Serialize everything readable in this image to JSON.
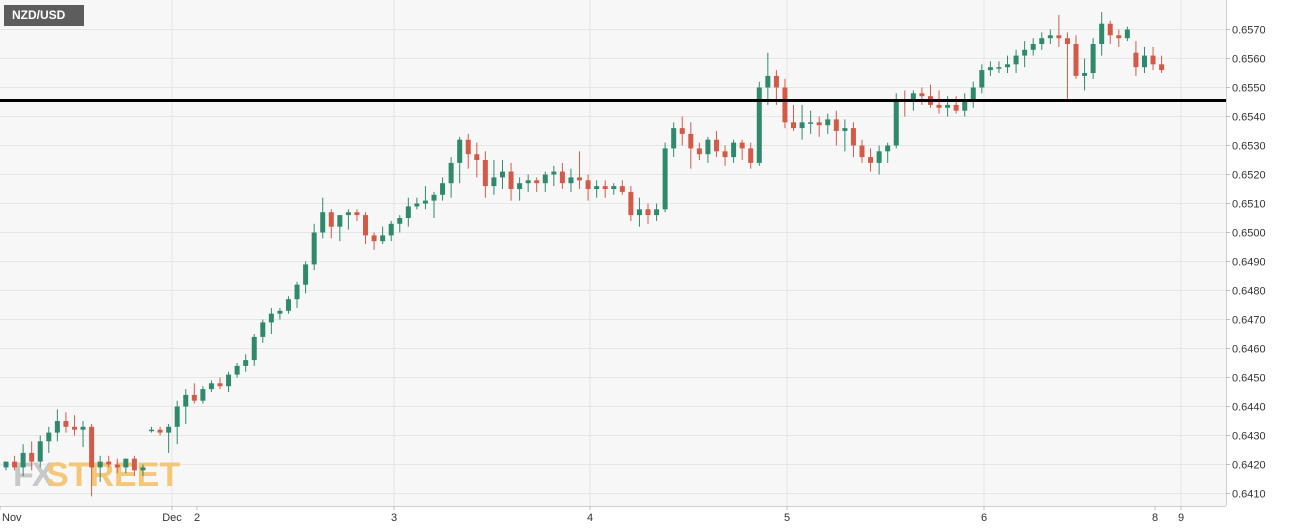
{
  "symbol_badge": "NZD/USD",
  "watermark": {
    "fx": "FX",
    "street": "STREET"
  },
  "colors": {
    "up": "#2f8a6d",
    "down": "#d45a48",
    "grid": "#e6e6e6",
    "level_line": "#000000",
    "plot_bg": "#f7f7f8"
  },
  "chart_data": {
    "type": "candlestick",
    "title": "NZD/USD",
    "ylim": [
      0.6407,
      0.6578
    ],
    "ytick_labels": [
      "0.6570",
      "0.6560",
      "0.6550",
      "0.6540",
      "0.6530",
      "0.6520",
      "0.6510",
      "0.6500",
      "0.6490",
      "0.6480",
      "0.6470",
      "0.6460",
      "0.6450",
      "0.6440",
      "0.6430",
      "0.6420",
      "0.6410"
    ],
    "xtick_labels": [
      "Nov",
      "Dec",
      "2",
      "3",
      "4",
      "5",
      "6",
      "8",
      "9"
    ],
    "grid": true,
    "horizontal_level": 0.65455,
    "candles": [
      [
        0.6419,
        0.6421,
        0.6418,
        0.6421
      ],
      [
        0.6421,
        0.6423,
        0.6418,
        0.6419
      ],
      [
        0.6419,
        0.6427,
        0.6416,
        0.6424
      ],
      [
        0.6424,
        0.6428,
        0.6418,
        0.6421
      ],
      [
        0.6421,
        0.643,
        0.6419,
        0.6428
      ],
      [
        0.6428,
        0.6433,
        0.6424,
        0.6431
      ],
      [
        0.6431,
        0.6439,
        0.6428,
        0.6435
      ],
      [
        0.6435,
        0.6438,
        0.6431,
        0.6433
      ],
      [
        0.6433,
        0.6437,
        0.643,
        0.6432
      ],
      [
        0.6432,
        0.6435,
        0.6426,
        0.6433
      ],
      [
        0.6433,
        0.6434,
        0.6409,
        0.6419
      ],
      [
        0.6419,
        0.6423,
        0.6414,
        0.6421
      ],
      [
        0.6421,
        0.6423,
        0.6419,
        0.642
      ],
      [
        0.642,
        0.6422,
        0.6417,
        0.6419
      ],
      [
        0.6419,
        0.6422,
        0.6417,
        0.6422
      ],
      [
        0.6422,
        0.6423,
        0.6416,
        0.6418
      ],
      [
        0.6418,
        0.642,
        0.6416,
        0.6419
      ],
      [
        0.6432,
        0.6433,
        0.6431,
        0.6432
      ],
      [
        0.6432,
        0.6433,
        0.643,
        0.6431
      ],
      [
        0.6431,
        0.6434,
        0.6424,
        0.6433
      ],
      [
        0.6433,
        0.6442,
        0.6427,
        0.644
      ],
      [
        0.644,
        0.6446,
        0.6434,
        0.6444
      ],
      [
        0.6444,
        0.6448,
        0.6441,
        0.6442
      ],
      [
        0.6442,
        0.6447,
        0.6441,
        0.6446
      ],
      [
        0.6446,
        0.6449,
        0.6445,
        0.6448
      ],
      [
        0.6448,
        0.645,
        0.6446,
        0.6447
      ],
      [
        0.6447,
        0.6452,
        0.6445,
        0.6451
      ],
      [
        0.6451,
        0.6455,
        0.645,
        0.6454
      ],
      [
        0.6454,
        0.6458,
        0.6452,
        0.6456
      ],
      [
        0.6456,
        0.6465,
        0.6454,
        0.6464
      ],
      [
        0.6464,
        0.647,
        0.6462,
        0.6469
      ],
      [
        0.6469,
        0.6474,
        0.6465,
        0.6472
      ],
      [
        0.6472,
        0.6474,
        0.647,
        0.6473
      ],
      [
        0.6473,
        0.6478,
        0.6472,
        0.6477
      ],
      [
        0.6477,
        0.6483,
        0.6474,
        0.6482
      ],
      [
        0.6482,
        0.649,
        0.6479,
        0.6489
      ],
      [
        0.6489,
        0.6503,
        0.6487,
        0.65
      ],
      [
        0.65,
        0.6512,
        0.6498,
        0.6507
      ],
      [
        0.6507,
        0.6508,
        0.6498,
        0.6502
      ],
      [
        0.6502,
        0.6506,
        0.6497,
        0.6506
      ],
      [
        0.6506,
        0.6508,
        0.6501,
        0.6507
      ],
      [
        0.6507,
        0.6508,
        0.6504,
        0.6506
      ],
      [
        0.6506,
        0.6507,
        0.6496,
        0.6499
      ],
      [
        0.6499,
        0.65,
        0.6494,
        0.6497
      ],
      [
        0.6497,
        0.6502,
        0.6496,
        0.6499
      ],
      [
        0.6499,
        0.6504,
        0.6497,
        0.6503
      ],
      [
        0.6503,
        0.6506,
        0.65,
        0.6505
      ],
      [
        0.6505,
        0.6512,
        0.6502,
        0.6509
      ],
      [
        0.6509,
        0.6512,
        0.6508,
        0.651
      ],
      [
        0.651,
        0.6516,
        0.6508,
        0.6511
      ],
      [
        0.6511,
        0.6514,
        0.6505,
        0.6513
      ],
      [
        0.6513,
        0.6519,
        0.6511,
        0.6517
      ],
      [
        0.6517,
        0.6526,
        0.6512,
        0.6524
      ],
      [
        0.6524,
        0.6533,
        0.6517,
        0.6532
      ],
      [
        0.6532,
        0.6534,
        0.6522,
        0.6527
      ],
      [
        0.6527,
        0.6531,
        0.6519,
        0.6525
      ],
      [
        0.6525,
        0.6528,
        0.6512,
        0.6516
      ],
      [
        0.6516,
        0.6525,
        0.6513,
        0.6519
      ],
      [
        0.6519,
        0.6525,
        0.6515,
        0.6521
      ],
      [
        0.6521,
        0.6524,
        0.6511,
        0.6515
      ],
      [
        0.6515,
        0.6519,
        0.6511,
        0.6517
      ],
      [
        0.6517,
        0.652,
        0.6514,
        0.6518
      ],
      [
        0.6518,
        0.6519,
        0.6514,
        0.6517
      ],
      [
        0.6517,
        0.6521,
        0.6514,
        0.652
      ],
      [
        0.652,
        0.6523,
        0.6516,
        0.6521
      ],
      [
        0.6521,
        0.6524,
        0.6515,
        0.6517
      ],
      [
        0.6517,
        0.6522,
        0.6514,
        0.6519
      ],
      [
        0.6519,
        0.6528,
        0.6515,
        0.6518
      ],
      [
        0.6518,
        0.652,
        0.6511,
        0.6515
      ],
      [
        0.6515,
        0.6518,
        0.6512,
        0.6516
      ],
      [
        0.6516,
        0.6518,
        0.6512,
        0.6515
      ],
      [
        0.6515,
        0.6517,
        0.6513,
        0.6516
      ],
      [
        0.6516,
        0.6518,
        0.6513,
        0.6514
      ],
      [
        0.6514,
        0.6516,
        0.6504,
        0.6506
      ],
      [
        0.6506,
        0.6512,
        0.6502,
        0.6508
      ],
      [
        0.6508,
        0.651,
        0.6503,
        0.6506
      ],
      [
        0.6506,
        0.651,
        0.6504,
        0.6508
      ],
      [
        0.6508,
        0.6531,
        0.6507,
        0.6529
      ],
      [
        0.6529,
        0.6538,
        0.6526,
        0.6536
      ],
      [
        0.6536,
        0.654,
        0.653,
        0.6534
      ],
      [
        0.6534,
        0.6538,
        0.6522,
        0.6529
      ],
      [
        0.6529,
        0.6531,
        0.6525,
        0.6527
      ],
      [
        0.6527,
        0.6533,
        0.6524,
        0.6532
      ],
      [
        0.6532,
        0.6535,
        0.6526,
        0.6528
      ],
      [
        0.6528,
        0.653,
        0.6523,
        0.6526
      ],
      [
        0.6526,
        0.6532,
        0.6524,
        0.6531
      ],
      [
        0.6531,
        0.6532,
        0.6525,
        0.6529
      ],
      [
        0.6529,
        0.6531,
        0.6522,
        0.6524
      ],
      [
        0.6524,
        0.6552,
        0.6523,
        0.655
      ],
      [
        0.655,
        0.6562,
        0.6544,
        0.6554
      ],
      [
        0.6554,
        0.6556,
        0.6544,
        0.655
      ],
      [
        0.655,
        0.6553,
        0.6536,
        0.6538
      ],
      [
        0.6538,
        0.6544,
        0.6535,
        0.6536
      ],
      [
        0.6536,
        0.6544,
        0.6532,
        0.6538
      ],
      [
        0.6538,
        0.6542,
        0.6534,
        0.6538
      ],
      [
        0.6538,
        0.654,
        0.6533,
        0.6537
      ],
      [
        0.6537,
        0.6541,
        0.6534,
        0.6539
      ],
      [
        0.6539,
        0.6542,
        0.653,
        0.6535
      ],
      [
        0.6535,
        0.6539,
        0.6528,
        0.6536
      ],
      [
        0.6536,
        0.6538,
        0.6526,
        0.653
      ],
      [
        0.653,
        0.6532,
        0.6524,
        0.6526
      ],
      [
        0.6526,
        0.6529,
        0.6521,
        0.6524
      ],
      [
        0.6524,
        0.653,
        0.652,
        0.6528
      ],
      [
        0.6528,
        0.6531,
        0.6524,
        0.653
      ],
      [
        0.653,
        0.6548,
        0.6529,
        0.6546
      ],
      [
        0.6546,
        0.6549,
        0.654,
        0.6545
      ],
      [
        0.6545,
        0.6549,
        0.6542,
        0.6548
      ],
      [
        0.6548,
        0.655,
        0.6544,
        0.6547
      ],
      [
        0.6547,
        0.6551,
        0.6543,
        0.6544
      ],
      [
        0.6544,
        0.6549,
        0.6541,
        0.6543
      ],
      [
        0.6543,
        0.6547,
        0.654,
        0.6544
      ],
      [
        0.6544,
        0.6547,
        0.6541,
        0.6542
      ],
      [
        0.6542,
        0.6548,
        0.654,
        0.6545
      ],
      [
        0.6545,
        0.6552,
        0.6543,
        0.655
      ],
      [
        0.655,
        0.6558,
        0.6548,
        0.6556
      ],
      [
        0.6556,
        0.6559,
        0.6554,
        0.6557
      ],
      [
        0.6557,
        0.6559,
        0.6555,
        0.6557
      ],
      [
        0.6557,
        0.6561,
        0.6555,
        0.6558
      ],
      [
        0.6558,
        0.6563,
        0.6555,
        0.6561
      ],
      [
        0.6561,
        0.6566,
        0.6557,
        0.6563
      ],
      [
        0.6563,
        0.6567,
        0.6561,
        0.6565
      ],
      [
        0.6565,
        0.6569,
        0.6563,
        0.6567
      ],
      [
        0.6567,
        0.657,
        0.6565,
        0.6568
      ],
      [
        0.6568,
        0.6575,
        0.6564,
        0.6567
      ],
      [
        0.6567,
        0.6569,
        0.6545,
        0.6565
      ],
      [
        0.6565,
        0.6568,
        0.6553,
        0.6554
      ],
      [
        0.6554,
        0.656,
        0.6549,
        0.6555
      ],
      [
        0.6555,
        0.6567,
        0.6553,
        0.6565
      ],
      [
        0.6565,
        0.6576,
        0.6561,
        0.6572
      ],
      [
        0.6572,
        0.6573,
        0.6565,
        0.6568
      ],
      [
        0.6568,
        0.657,
        0.6564,
        0.6567
      ],
      [
        0.6567,
        0.6571,
        0.6566,
        0.657
      ],
      [
        0.6562,
        0.6566,
        0.6554,
        0.6557
      ],
      [
        0.6557,
        0.6564,
        0.6555,
        0.6561
      ],
      [
        0.6561,
        0.6564,
        0.6556,
        0.6558
      ],
      [
        0.6558,
        0.6561,
        0.6555,
        0.6556
      ]
    ]
  }
}
